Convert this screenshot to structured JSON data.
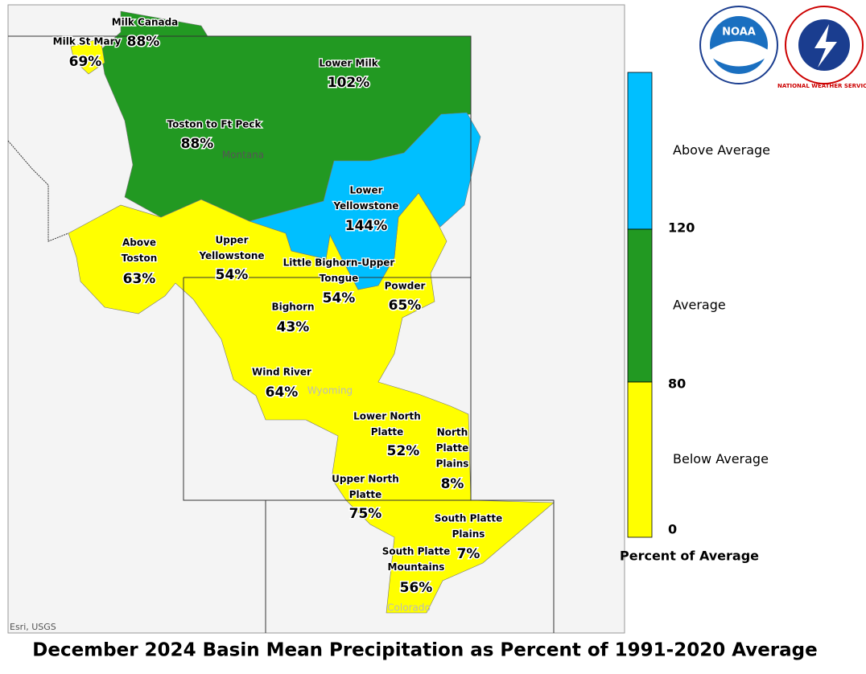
{
  "title": "December 2024 Basin Mean Precipitation as Percent of 1991-2020 Average",
  "places": [
    "Montana",
    "Wyoming",
    "Colorado"
  ],
  "credit": "Esri, USGS",
  "logos": {
    "noaa": "NOAA",
    "nws": "NATIONAL WEATHER SERVICE"
  },
  "basins": [
    {
      "name": [
        "Milk Canada"
      ],
      "label": "88%",
      "color": "#229922"
    },
    {
      "name": [
        "Milk St Mary"
      ],
      "label": "69%",
      "color": "#ffff00"
    },
    {
      "name": [
        "Lower Milk"
      ],
      "label": "102%",
      "color": "#229922"
    },
    {
      "name": [
        "Toston to Ft Peck"
      ],
      "label": "88%",
      "color": "#229922"
    },
    {
      "name": [
        "Lower",
        "Yellowstone"
      ],
      "label": "144%",
      "color": "#00bfff"
    },
    {
      "name": [
        "Above",
        "Toston"
      ],
      "label": "63%",
      "color": "#ffff00"
    },
    {
      "name": [
        "Upper",
        "Yellowstone"
      ],
      "label": "54%",
      "color": "#ffff00"
    },
    {
      "name": [
        "Little Bighorn-Upper",
        "Tongue"
      ],
      "label": "54%",
      "color": "#ffff00"
    },
    {
      "name": [
        "Powder"
      ],
      "label": "65%",
      "color": "#ffff00"
    },
    {
      "name": [
        "Bighorn"
      ],
      "label": "43%",
      "color": "#ffff00"
    },
    {
      "name": [
        "Wind River"
      ],
      "label": "64%",
      "color": "#ffff00"
    },
    {
      "name": [
        "Lower North",
        "Platte"
      ],
      "label": "52%",
      "color": "#ffff00"
    },
    {
      "name": [
        "North",
        "Platte",
        "Plains"
      ],
      "label": "8%",
      "color": "#ffff00"
    },
    {
      "name": [
        "Upper North",
        "Platte"
      ],
      "label": "75%",
      "color": "#ffff00"
    },
    {
      "name": [
        "South Platte",
        "Plains"
      ],
      "label": "7%",
      "color": "#ffff00"
    },
    {
      "name": [
        "South Platte",
        "Mountains"
      ],
      "label": "56%",
      "color": "#ffff00"
    }
  ],
  "legend": {
    "title": "Percent of Average",
    "classes": [
      {
        "name": "Above Average",
        "color": "#00bfff"
      },
      {
        "name": "Average",
        "color": "#229922"
      },
      {
        "name": "Below Average",
        "color": "#ffff00"
      }
    ],
    "breaks": [
      120,
      80,
      0
    ]
  }
}
